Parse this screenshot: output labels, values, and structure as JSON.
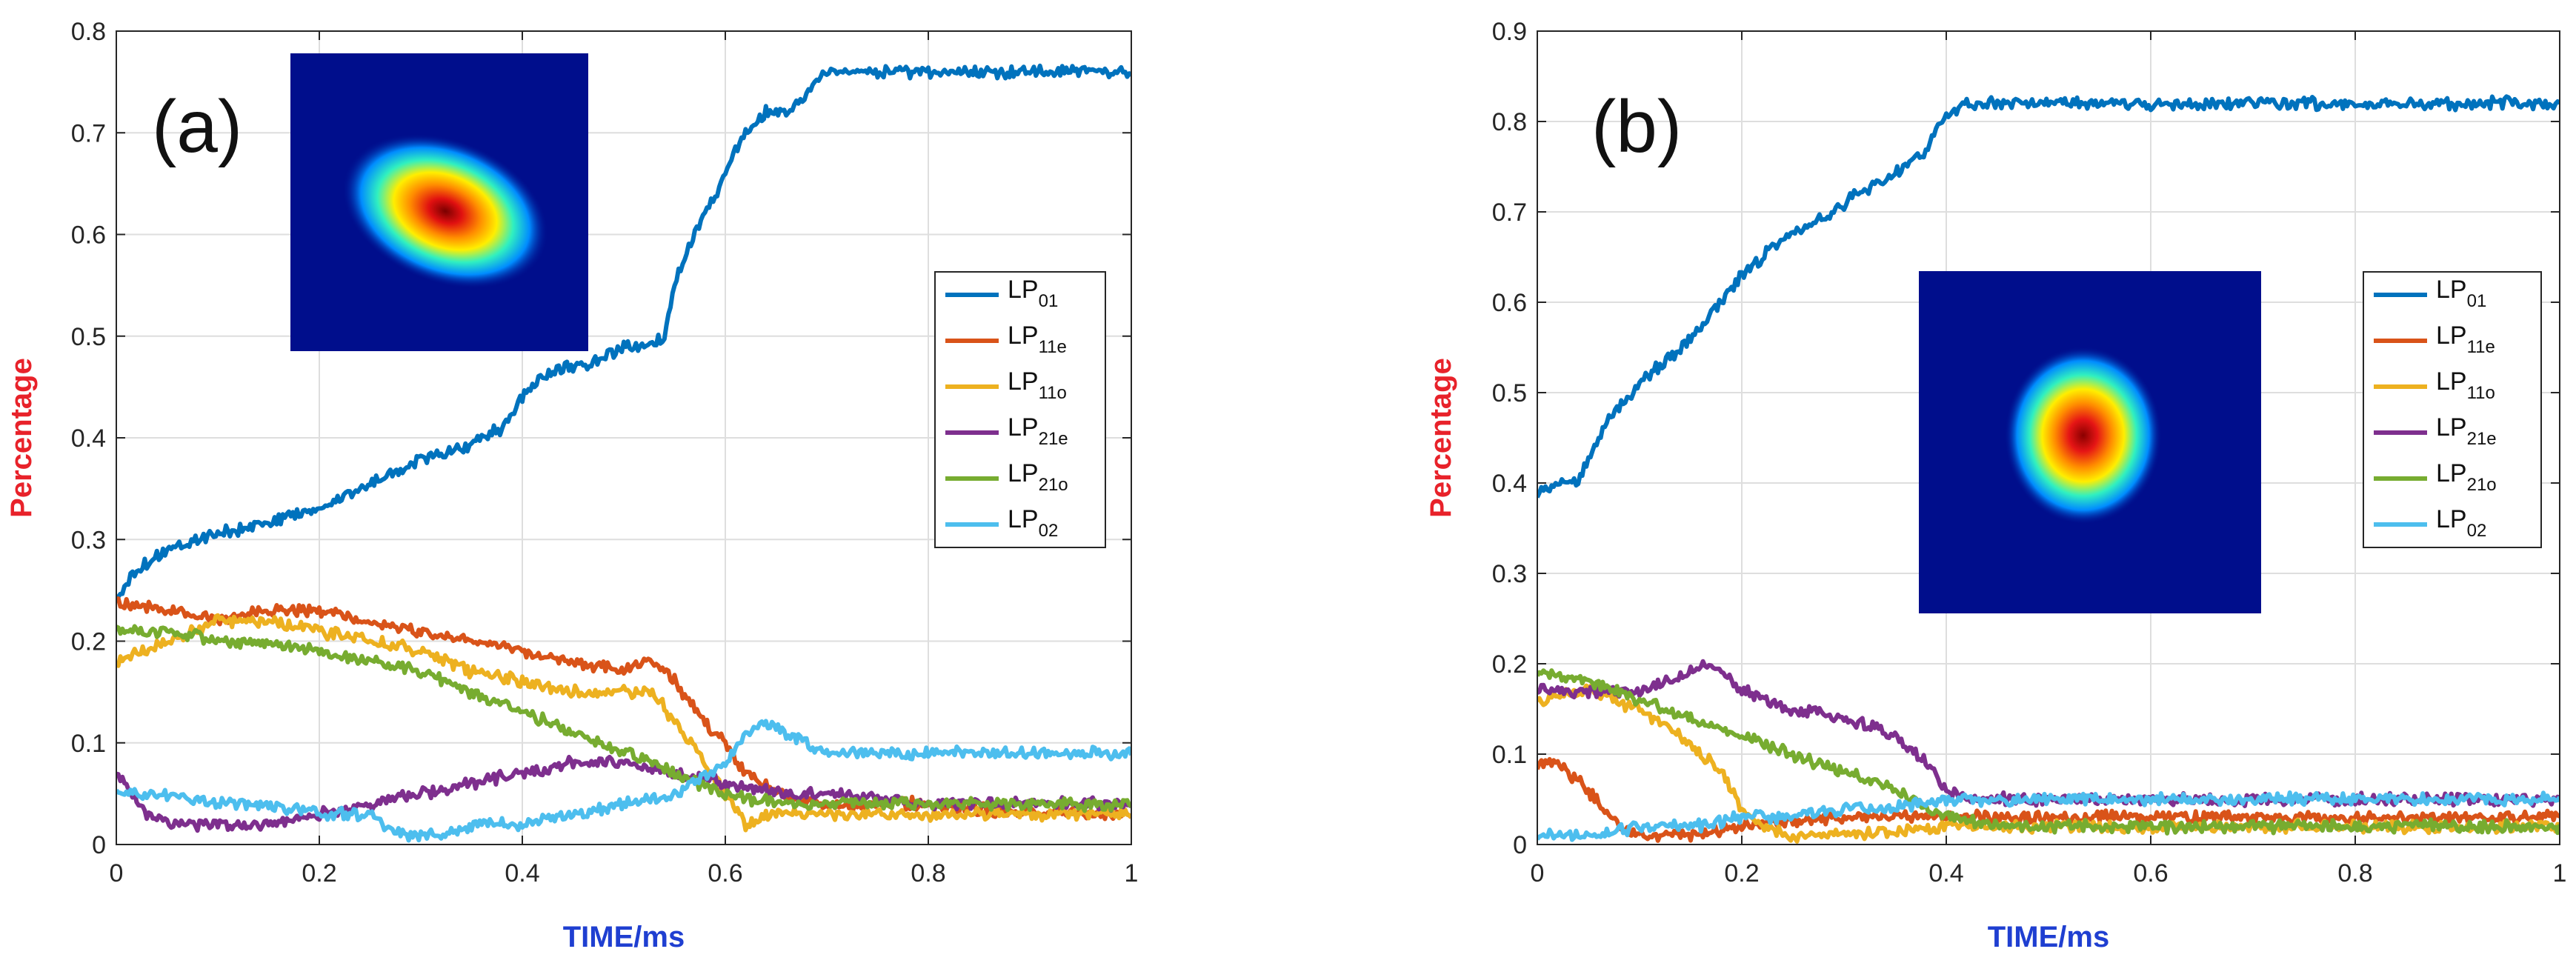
{
  "chart_data": [
    {
      "type": "line",
      "panel_label": "(a)",
      "title": "",
      "xlabel": "TIME/ms",
      "ylabel": "Percentage",
      "xlim": [
        0,
        1
      ],
      "ylim": [
        0,
        0.8
      ],
      "xticks": [
        0,
        0.2,
        0.4,
        0.6,
        0.8,
        1
      ],
      "xtick_labels": [
        "0",
        "0.2",
        "0.4",
        "0.6",
        "0.8",
        "1"
      ],
      "yticks": [
        0,
        0.1,
        0.2,
        0.3,
        0.4,
        0.5,
        0.6,
        0.7,
        0.8
      ],
      "ytick_labels": [
        "0",
        "0.1",
        "0.2",
        "0.3",
        "0.4",
        "0.5",
        "0.6",
        "0.7",
        "0.8"
      ],
      "grid": true,
      "legend": "right-middle",
      "inset": "mode intensity image, upper-left",
      "series": [
        {
          "name": "LP01",
          "base": "LP",
          "sub": "01",
          "color": "#0072BD",
          "x": [
            0,
            0.02,
            0.05,
            0.08,
            0.12,
            0.16,
            0.2,
            0.24,
            0.28,
            0.3,
            0.34,
            0.36,
            0.38,
            0.4,
            0.42,
            0.44,
            0.46,
            0.48,
            0.5,
            0.52,
            0.54,
            0.55,
            0.56,
            0.58,
            0.6,
            0.62,
            0.64,
            0.66,
            0.68,
            0.7,
            0.75,
            0.8,
            0.85,
            0.9,
            0.95,
            1
          ],
          "y": [
            0.24,
            0.27,
            0.29,
            0.3,
            0.31,
            0.32,
            0.33,
            0.35,
            0.37,
            0.38,
            0.39,
            0.4,
            0.41,
            0.44,
            0.46,
            0.47,
            0.47,
            0.48,
            0.49,
            0.49,
            0.5,
            0.55,
            0.58,
            0.62,
            0.66,
            0.7,
            0.72,
            0.72,
            0.74,
            0.76,
            0.76,
            0.76,
            0.76,
            0.76,
            0.76,
            0.76
          ]
        },
        {
          "name": "LP11e",
          "base": "LP",
          "sub": "11e",
          "color": "#D95319",
          "x": [
            0,
            0.05,
            0.1,
            0.15,
            0.2,
            0.25,
            0.3,
            0.35,
            0.4,
            0.45,
            0.5,
            0.53,
            0.55,
            0.58,
            0.6,
            0.62,
            0.65,
            0.7,
            0.8,
            0.9,
            1
          ],
          "y": [
            0.24,
            0.23,
            0.22,
            0.23,
            0.23,
            0.22,
            0.21,
            0.2,
            0.19,
            0.18,
            0.17,
            0.18,
            0.16,
            0.12,
            0.1,
            0.07,
            0.05,
            0.04,
            0.04,
            0.03,
            0.03
          ]
        },
        {
          "name": "LP11o",
          "base": "LP",
          "sub": "11o",
          "color": "#EDB120",
          "x": [
            0,
            0.05,
            0.1,
            0.15,
            0.2,
            0.25,
            0.3,
            0.35,
            0.4,
            0.45,
            0.5,
            0.53,
            0.55,
            0.58,
            0.6,
            0.62,
            0.65,
            0.7,
            0.8,
            0.9,
            1
          ],
          "y": [
            0.18,
            0.2,
            0.22,
            0.22,
            0.21,
            0.2,
            0.19,
            0.17,
            0.16,
            0.15,
            0.15,
            0.15,
            0.12,
            0.08,
            0.05,
            0.02,
            0.03,
            0.03,
            0.03,
            0.03,
            0.03
          ]
        },
        {
          "name": "LP21e",
          "base": "LP",
          "sub": "21e",
          "color": "#7E2F8E",
          "x": [
            0,
            0.03,
            0.06,
            0.1,
            0.15,
            0.2,
            0.25,
            0.3,
            0.35,
            0.4,
            0.45,
            0.5,
            0.55,
            0.6,
            0.65,
            0.7,
            0.8,
            0.9,
            1
          ],
          "y": [
            0.07,
            0.03,
            0.02,
            0.02,
            0.02,
            0.03,
            0.04,
            0.05,
            0.06,
            0.07,
            0.08,
            0.08,
            0.07,
            0.06,
            0.05,
            0.05,
            0.04,
            0.04,
            0.04
          ]
        },
        {
          "name": "LP21o",
          "base": "LP",
          "sub": "21o",
          "color": "#77AC30",
          "x": [
            0,
            0.05,
            0.1,
            0.15,
            0.2,
            0.25,
            0.3,
            0.35,
            0.4,
            0.45,
            0.5,
            0.55,
            0.6,
            0.65,
            0.7,
            0.8,
            0.9,
            1
          ],
          "y": [
            0.21,
            0.21,
            0.2,
            0.2,
            0.19,
            0.18,
            0.17,
            0.15,
            0.13,
            0.11,
            0.09,
            0.07,
            0.05,
            0.04,
            0.04,
            0.04,
            0.04,
            0.04
          ]
        },
        {
          "name": "LP02",
          "base": "LP",
          "sub": "02",
          "color": "#4DBEEE",
          "x": [
            0,
            0.05,
            0.1,
            0.15,
            0.2,
            0.25,
            0.28,
            0.3,
            0.32,
            0.35,
            0.4,
            0.45,
            0.5,
            0.55,
            0.6,
            0.62,
            0.64,
            0.66,
            0.7,
            0.8,
            0.9,
            1
          ],
          "y": [
            0.05,
            0.05,
            0.04,
            0.04,
            0.03,
            0.03,
            0.01,
            0.01,
            0.01,
            0.02,
            0.02,
            0.03,
            0.04,
            0.05,
            0.08,
            0.11,
            0.12,
            0.11,
            0.09,
            0.09,
            0.09,
            0.09
          ]
        }
      ]
    },
    {
      "type": "line",
      "panel_label": "(b)",
      "title": "",
      "xlabel": "TIME/ms",
      "ylabel": "Percentage",
      "xlim": [
        0,
        1
      ],
      "ylim": [
        0,
        0.9
      ],
      "xticks": [
        0,
        0.2,
        0.4,
        0.6,
        0.8,
        1
      ],
      "xtick_labels": [
        "0",
        "0.2",
        "0.4",
        "0.6",
        "0.8",
        "1"
      ],
      "yticks": [
        0,
        0.1,
        0.2,
        0.3,
        0.4,
        0.5,
        0.6,
        0.7,
        0.8,
        0.9
      ],
      "ytick_labels": [
        "0",
        "0.1",
        "0.2",
        "0.3",
        "0.4",
        "0.5",
        "0.6",
        "0.7",
        "0.8",
        "0.9"
      ],
      "grid": true,
      "legend": "right-middle",
      "inset": "mode intensity image, center",
      "series": [
        {
          "name": "LP01",
          "base": "LP",
          "sub": "01",
          "color": "#0072BD",
          "x": [
            0,
            0.02,
            0.04,
            0.05,
            0.07,
            0.1,
            0.13,
            0.15,
            0.18,
            0.2,
            0.23,
            0.26,
            0.3,
            0.33,
            0.36,
            0.38,
            0.4,
            0.42,
            0.5,
            0.6,
            0.7,
            0.8,
            0.9,
            1
          ],
          "y": [
            0.39,
            0.4,
            0.4,
            0.43,
            0.47,
            0.51,
            0.54,
            0.56,
            0.6,
            0.63,
            0.66,
            0.68,
            0.71,
            0.73,
            0.75,
            0.77,
            0.81,
            0.82,
            0.82,
            0.82,
            0.82,
            0.82,
            0.82,
            0.82
          ]
        },
        {
          "name": "LP11e",
          "base": "LP",
          "sub": "11e",
          "color": "#D95319",
          "x": [
            0,
            0.02,
            0.05,
            0.08,
            0.1,
            0.13,
            0.15,
            0.2,
            0.3,
            0.4,
            0.5,
            0.6,
            0.8,
            1
          ],
          "y": [
            0.09,
            0.09,
            0.06,
            0.02,
            0.01,
            0.01,
            0.01,
            0.02,
            0.03,
            0.03,
            0.03,
            0.03,
            0.03,
            0.03
          ]
        },
        {
          "name": "LP11o",
          "base": "LP",
          "sub": "11o",
          "color": "#EDB120",
          "x": [
            0,
            0.05,
            0.1,
            0.15,
            0.18,
            0.2,
            0.22,
            0.25,
            0.3,
            0.4,
            0.5,
            0.6,
            0.8,
            1
          ],
          "y": [
            0.16,
            0.17,
            0.15,
            0.11,
            0.08,
            0.04,
            0.02,
            0.01,
            0.01,
            0.02,
            0.02,
            0.02,
            0.02,
            0.02
          ]
        },
        {
          "name": "LP21e",
          "base": "LP",
          "sub": "21e",
          "color": "#7E2F8E",
          "x": [
            0,
            0.05,
            0.1,
            0.15,
            0.17,
            0.2,
            0.25,
            0.3,
            0.35,
            0.38,
            0.4,
            0.42,
            0.5,
            0.6,
            0.8,
            1
          ],
          "y": [
            0.17,
            0.17,
            0.17,
            0.19,
            0.2,
            0.17,
            0.15,
            0.14,
            0.12,
            0.09,
            0.06,
            0.05,
            0.05,
            0.05,
            0.05,
            0.05
          ]
        },
        {
          "name": "LP21o",
          "base": "LP",
          "sub": "21o",
          "color": "#77AC30",
          "x": [
            0,
            0.05,
            0.1,
            0.15,
            0.2,
            0.25,
            0.3,
            0.35,
            0.4,
            0.45,
            0.5,
            0.6,
            0.8,
            1
          ],
          "y": [
            0.19,
            0.18,
            0.16,
            0.14,
            0.12,
            0.1,
            0.08,
            0.06,
            0.03,
            0.02,
            0.02,
            0.02,
            0.02,
            0.02
          ]
        },
        {
          "name": "LP02",
          "base": "LP",
          "sub": "02",
          "color": "#4DBEEE",
          "x": [
            0,
            0.05,
            0.1,
            0.15,
            0.2,
            0.25,
            0.3,
            0.35,
            0.4,
            0.5,
            0.6,
            0.8,
            1
          ],
          "y": [
            0.01,
            0.01,
            0.02,
            0.02,
            0.03,
            0.03,
            0.04,
            0.04,
            0.05,
            0.05,
            0.05,
            0.05,
            0.05
          ]
        }
      ]
    }
  ]
}
